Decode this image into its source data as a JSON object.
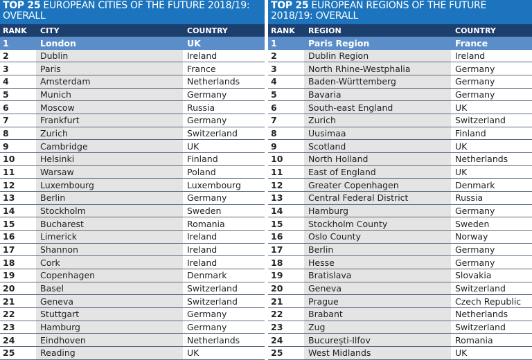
{
  "cities": {
    "title_bold": "TOP 25",
    "title_rest": " EUROPEAN CITIES OF THE FUTURE 2018/19: OVERALL",
    "headers": [
      "RANK",
      "CITY",
      "COUNTRY"
    ],
    "rows": [
      [
        "1",
        "London",
        "UK"
      ],
      [
        "2",
        "Dublin",
        "Ireland"
      ],
      [
        "3",
        "Paris",
        "France"
      ],
      [
        "4",
        "Amsterdam",
        "Netherlands"
      ],
      [
        "5",
        "Munich",
        "Germany"
      ],
      [
        "6",
        "Moscow",
        "Russia"
      ],
      [
        "7",
        "Frankfurt",
        "Germany"
      ],
      [
        "8",
        "Zurich",
        "Switzerland"
      ],
      [
        "9",
        "Cambridge",
        "UK"
      ],
      [
        "10",
        "Helsinki",
        "Finland"
      ],
      [
        "11",
        "Warsaw",
        "Poland"
      ],
      [
        "12",
        "Luxembourg",
        "Luxembourg"
      ],
      [
        "13",
        "Berlin",
        "Germany"
      ],
      [
        "14",
        "Stockholm",
        "Sweden"
      ],
      [
        "15",
        "Bucharest",
        "Romania"
      ],
      [
        "16",
        "Limerick",
        "Ireland"
      ],
      [
        "17",
        "Shannon",
        "Ireland"
      ],
      [
        "18",
        "Cork",
        "Ireland"
      ],
      [
        "19",
        "Copenhagen",
        "Denmark"
      ],
      [
        "20",
        "Basel",
        "Switzerland"
      ],
      [
        "21",
        "Geneva",
        "Switzerland"
      ],
      [
        "22",
        "Stuttgart",
        "Germany"
      ],
      [
        "23",
        "Hamburg",
        "Germany"
      ],
      [
        "24",
        "Eindhoven",
        "Netherlands"
      ],
      [
        "25",
        "Reading",
        "UK"
      ]
    ]
  },
  "regions": {
    "title_bold": "TOP 25",
    "title_rest": " EUROPEAN REGIONS OF THE FUTURE 2018/19: OVERALL",
    "headers": [
      "RANK",
      "REGION",
      "COUNTRY"
    ],
    "rows": [
      [
        "1",
        "Paris Region",
        "France"
      ],
      [
        "2",
        "Dublin Region",
        "Ireland"
      ],
      [
        "3",
        "North Rhine-Westphalia",
        "Germany"
      ],
      [
        "4",
        "Baden-Württemberg",
        "Germany"
      ],
      [
        "5",
        "Bavaria",
        "Germany"
      ],
      [
        "6",
        "South-east England",
        "UK"
      ],
      [
        "7",
        "Zurich",
        "Switzerland"
      ],
      [
        "8",
        "Uusimaa",
        "Finland"
      ],
      [
        "9",
        "Scotland",
        "UK"
      ],
      [
        "10",
        "North Holland",
        "Netherlands"
      ],
      [
        "11",
        "East of England",
        "UK"
      ],
      [
        "12",
        "Greater Copenhagen",
        "Denmark"
      ],
      [
        "13",
        "Central Federal District",
        "Russia"
      ],
      [
        "14",
        "Hamburg",
        "Germany"
      ],
      [
        "15",
        "Stockholm County",
        "Sweden"
      ],
      [
        "16",
        "Oslo County",
        "Norway"
      ],
      [
        "17",
        "Berlin",
        "Germany"
      ],
      [
        "18",
        "Hesse",
        "Germany"
      ],
      [
        "19",
        "Bratislava",
        "Slovakia"
      ],
      [
        "20",
        "Geneva",
        "Switzerland"
      ],
      [
        "21",
        "Prague",
        "Czech Republic"
      ],
      [
        "22",
        "Brabant",
        "Netherlands"
      ],
      [
        "23",
        "Zug",
        "Switzerland"
      ],
      [
        "24",
        "București-Ilfov",
        "Romania"
      ],
      [
        "25",
        "West Midlands",
        "UK"
      ]
    ]
  },
  "colors": {
    "title_bg": "#1b74bd",
    "header_bg": "#1c3f6e",
    "highlight": "#5b8ec9"
  }
}
